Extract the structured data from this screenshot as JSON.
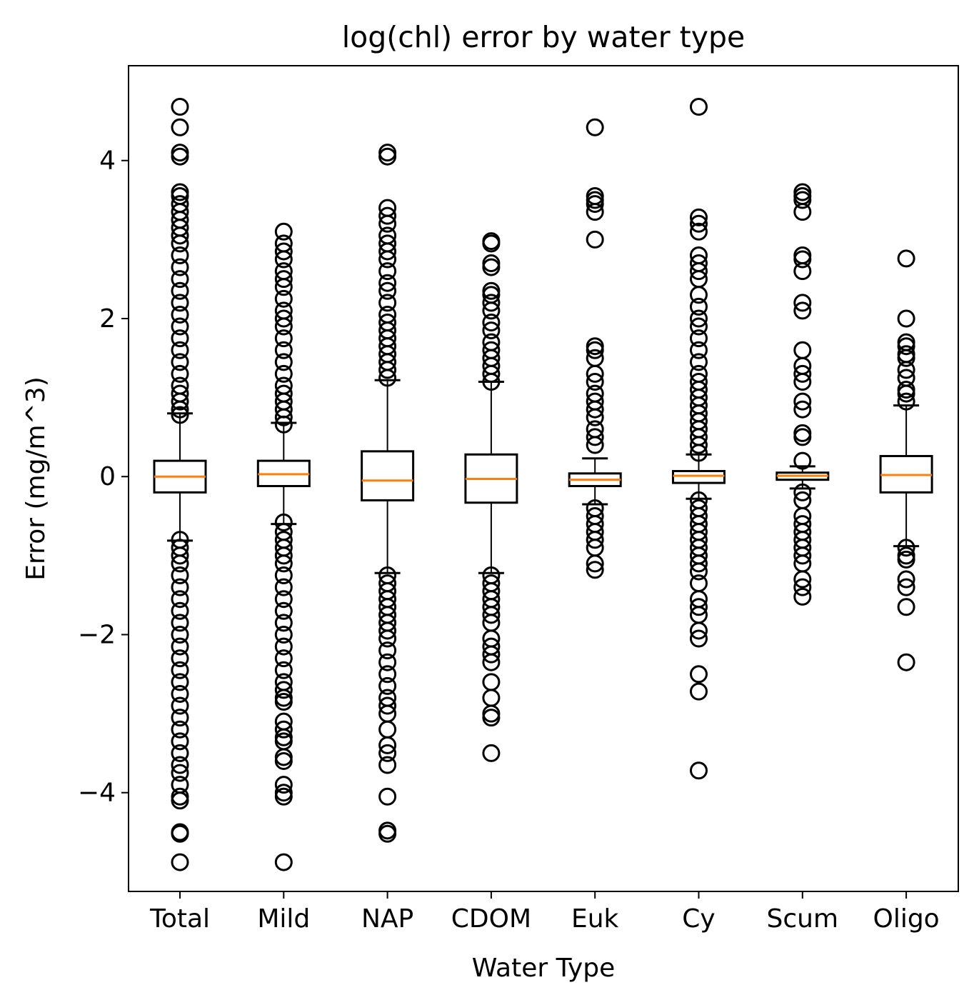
{
  "chart_data": {
    "type": "box",
    "title": "log(chl)  error by water type",
    "xlabel": "Water Type",
    "ylabel": "Error (mg/m^3)",
    "ylim": [
      -5.25,
      5.2
    ],
    "yticks": [
      4,
      2,
      0,
      -2,
      -4
    ],
    "ytick_labels": [
      "4",
      "2",
      "0",
      "−2",
      "−4"
    ],
    "grid": false,
    "median_color": "#ff7f0e",
    "box_color": "#000000",
    "categories": [
      "Total",
      "Mild",
      "NAP",
      "CDOM",
      "Euk",
      "Cy",
      "Scum",
      "Oligo"
    ],
    "boxes": [
      {
        "category": "Total",
        "whisker_low": -0.81,
        "q1": -0.2,
        "median": 0.0,
        "q3": 0.2,
        "whisker_high": 0.8,
        "outliers_high": [
          0.78,
          0.85,
          0.95,
          1.05,
          1.15,
          1.3,
          1.45,
          1.6,
          1.75,
          1.9,
          2.05,
          2.2,
          2.35,
          2.5,
          2.65,
          2.8,
          2.95,
          3.05,
          3.15,
          3.25,
          3.35,
          3.45,
          3.55,
          3.6,
          4.05,
          4.1,
          4.42,
          4.68
        ],
        "outliers_low": [
          -0.8,
          -0.9,
          -1.0,
          -1.1,
          -1.25,
          -1.4,
          -1.55,
          -1.7,
          -1.85,
          -2.0,
          -2.15,
          -2.3,
          -2.45,
          -2.6,
          -2.75,
          -2.9,
          -3.05,
          -3.2,
          -3.35,
          -3.5,
          -3.65,
          -3.75,
          -3.9,
          -4.05,
          -4.1,
          -4.5,
          -4.52,
          -4.88
        ]
      },
      {
        "category": "Mild",
        "whisker_low": -0.6,
        "q1": -0.12,
        "median": 0.03,
        "q3": 0.2,
        "whisker_high": 0.68,
        "outliers_high": [
          0.66,
          0.75,
          0.85,
          0.95,
          1.05,
          1.15,
          1.3,
          1.45,
          1.6,
          1.75,
          1.9,
          2.0,
          2.1,
          2.25,
          2.4,
          2.5,
          2.6,
          2.75,
          2.85,
          2.95,
          3.1
        ],
        "outliers_low": [
          -0.58,
          -0.7,
          -0.8,
          -0.9,
          -1.0,
          -1.1,
          -1.25,
          -1.4,
          -1.55,
          -1.7,
          -1.85,
          -2.0,
          -2.15,
          -2.3,
          -2.45,
          -2.6,
          -2.7,
          -2.8,
          -2.85,
          -3.1,
          -3.2,
          -3.3,
          -3.35,
          -3.55,
          -3.6,
          -3.9,
          -4.0,
          -4.05,
          -4.88
        ]
      },
      {
        "category": "NAP",
        "whisker_low": -1.22,
        "q1": -0.3,
        "median": -0.05,
        "q3": 0.32,
        "whisker_high": 1.22,
        "outliers_high": [
          1.25,
          1.35,
          1.45,
          1.55,
          1.65,
          1.75,
          1.85,
          1.95,
          2.05,
          2.2,
          2.35,
          2.45,
          2.6,
          2.75,
          2.85,
          2.95,
          3.05,
          3.2,
          3.3,
          3.4,
          4.05,
          4.1
        ],
        "outliers_low": [
          -1.25,
          -1.35,
          -1.45,
          -1.55,
          -1.65,
          -1.75,
          -1.85,
          -1.95,
          -2.05,
          -2.2,
          -2.35,
          -2.5,
          -2.65,
          -2.8,
          -2.9,
          -3.0,
          -3.2,
          -3.4,
          -3.5,
          -3.65,
          -4.05,
          -4.48,
          -4.52
        ]
      },
      {
        "category": "CDOM",
        "whisker_low": -1.22,
        "q1": -0.33,
        "median": -0.03,
        "q3": 0.28,
        "whisker_high": 1.2,
        "outliers_high": [
          1.2,
          1.3,
          1.4,
          1.5,
          1.6,
          1.7,
          1.85,
          1.95,
          2.1,
          2.2,
          2.3,
          2.35,
          2.65,
          2.7,
          2.95,
          2.98
        ],
        "outliers_low": [
          -1.25,
          -1.35,
          -1.45,
          -1.55,
          -1.65,
          -1.75,
          -1.85,
          -2.05,
          -2.15,
          -2.25,
          -2.35,
          -2.6,
          -2.8,
          -3.0,
          -3.05,
          -3.5
        ]
      },
      {
        "category": "Euk",
        "whisker_low": -0.35,
        "q1": -0.12,
        "median": -0.04,
        "q3": 0.04,
        "whisker_high": 0.23,
        "outliers_high": [
          0.4,
          0.5,
          0.6,
          0.75,
          0.85,
          0.95,
          1.05,
          1.2,
          1.3,
          1.5,
          1.6,
          1.65,
          3.0,
          3.35,
          3.45,
          3.5,
          3.55,
          4.42
        ],
        "outliers_low": [
          -0.4,
          -0.5,
          -0.6,
          -0.7,
          -0.8,
          -0.9,
          -1.1,
          -1.18
        ]
      },
      {
        "category": "Cy",
        "whisker_low": -0.28,
        "q1": -0.08,
        "median": 0.01,
        "q3": 0.07,
        "whisker_high": 0.28,
        "outliers_high": [
          0.3,
          0.4,
          0.5,
          0.6,
          0.7,
          0.8,
          0.9,
          1.0,
          1.1,
          1.2,
          1.3,
          1.45,
          1.6,
          1.75,
          1.9,
          2.0,
          2.15,
          2.3,
          2.5,
          2.6,
          2.7,
          2.8,
          3.1,
          3.2,
          3.28,
          4.68
        ],
        "outliers_low": [
          -0.3,
          -0.4,
          -0.5,
          -0.6,
          -0.7,
          -0.8,
          -0.9,
          -1.0,
          -1.1,
          -1.2,
          -1.35,
          -1.55,
          -1.65,
          -1.75,
          -1.95,
          -2.05,
          -2.5,
          -2.72,
          -3.72
        ]
      },
      {
        "category": "Scum",
        "whisker_low": -0.15,
        "q1": -0.04,
        "median": 0.01,
        "q3": 0.05,
        "whisker_high": 0.13,
        "outliers_high": [
          0.2,
          0.5,
          0.55,
          0.85,
          0.95,
          1.2,
          1.3,
          1.4,
          1.6,
          2.1,
          2.2,
          2.6,
          2.75,
          2.8,
          3.35,
          3.5,
          3.55,
          3.6
        ],
        "outliers_low": [
          -0.2,
          -0.3,
          -0.5,
          -0.6,
          -0.7,
          -0.8,
          -0.9,
          -1.0,
          -1.1,
          -1.3,
          -1.4,
          -1.52
        ]
      },
      {
        "category": "Oligo",
        "whisker_low": -0.88,
        "q1": -0.2,
        "median": 0.02,
        "q3": 0.26,
        "whisker_high": 0.9,
        "outliers_high": [
          0.95,
          1.05,
          1.1,
          1.25,
          1.35,
          1.5,
          1.55,
          1.65,
          1.7,
          2.0,
          2.76
        ],
        "outliers_low": [
          -0.9,
          -1.0,
          -1.05,
          -1.3,
          -1.4,
          -1.65,
          -2.35
        ]
      }
    ]
  }
}
